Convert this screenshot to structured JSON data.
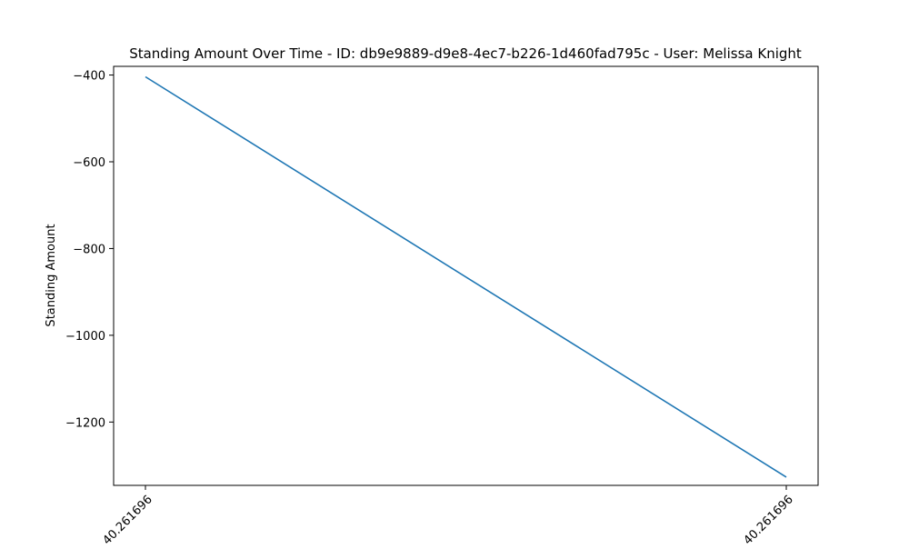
{
  "chart_data": {
    "type": "line",
    "title": "Standing Amount Over Time - ID: db9e9889-d9e8-4ec7-b226-1d460fad795c - User: Melissa Knight",
    "xlabel": "",
    "ylabel": "Standing Amount",
    "x_tick_labels": [
      "40.261696",
      "40.261696"
    ],
    "y_ticks": [
      -1200,
      -1000,
      -800,
      -600,
      -400
    ],
    "y_tick_labels": [
      "−1200",
      "−1000",
      "−800",
      "−600",
      "−400"
    ],
    "ylim": [
      -1346,
      -380
    ],
    "grid": false,
    "series": [
      {
        "values": [
          -404,
          -1327
        ],
        "color": "#1f77b4"
      }
    ]
  }
}
